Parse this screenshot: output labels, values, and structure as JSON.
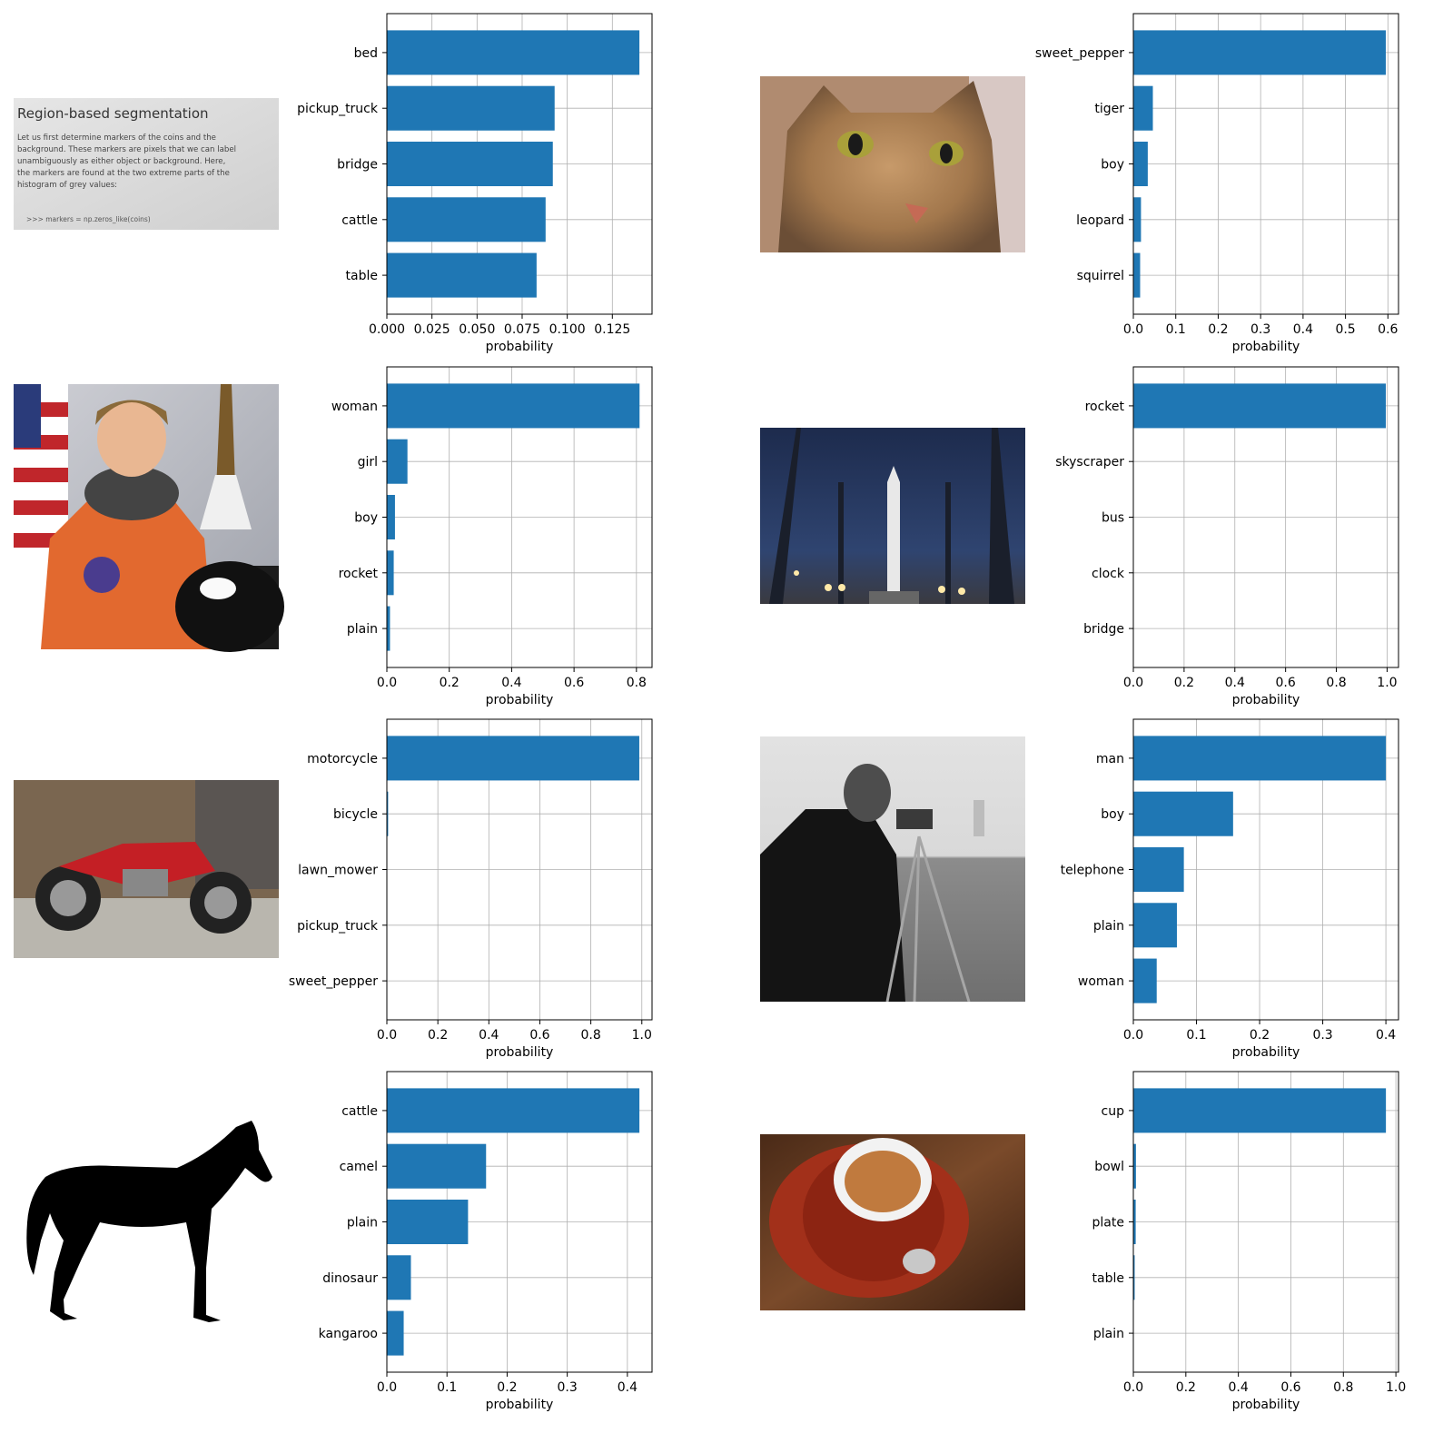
{
  "figure": {
    "panels": [
      {
        "photo": "text-page-photo",
        "photo_caption": "Region-based segmentation",
        "photo_lines": [
          "Let us first determine markers of the coins and the",
          "background. These markers are pixels that we can label",
          "unambiguously as either object or background. Here,",
          "the markers are found at the two extreme parts of the",
          "histogram of grey values:",
          ">>> markers = np.zeros_like(coins)"
        ]
      },
      {
        "photo": "cat-photo"
      },
      {
        "photo": "astronaut-photo"
      },
      {
        "photo": "rocket-launch-photo"
      },
      {
        "photo": "motorcycle-photo"
      },
      {
        "photo": "cameraman-photo"
      },
      {
        "photo": "horse-silhouette"
      },
      {
        "photo": "coffee-cup-photo"
      }
    ]
  },
  "colors": {
    "bar": "#1f77b4",
    "grid": "#b0b0b0",
    "axis": "#000000"
  },
  "chart_data": [
    {
      "type": "bar",
      "orientation": "horizontal",
      "categories": [
        "bed",
        "pickup_truck",
        "bridge",
        "cattle",
        "table"
      ],
      "values": [
        0.14,
        0.093,
        0.092,
        0.088,
        0.083
      ],
      "xlim": [
        0,
        0.147
      ],
      "xticks": [
        "0.000",
        "0.025",
        "0.050",
        "0.075",
        "0.100",
        "0.125"
      ],
      "xtick_values": [
        0,
        0.025,
        0.05,
        0.075,
        0.1,
        0.125
      ],
      "xlabel": "probability",
      "ylabel": "",
      "grid": true
    },
    {
      "type": "bar",
      "orientation": "horizontal",
      "categories": [
        "sweet_pepper",
        "tiger",
        "boy",
        "leopard",
        "squirrel"
      ],
      "values": [
        0.595,
        0.046,
        0.034,
        0.018,
        0.016
      ],
      "xlim": [
        0,
        0.625
      ],
      "xticks": [
        "0.0",
        "0.1",
        "0.2",
        "0.3",
        "0.4",
        "0.5",
        "0.6"
      ],
      "xtick_values": [
        0,
        0.1,
        0.2,
        0.3,
        0.4,
        0.5,
        0.6
      ],
      "xlabel": "probability",
      "ylabel": "",
      "grid": true
    },
    {
      "type": "bar",
      "orientation": "horizontal",
      "categories": [
        "woman",
        "girl",
        "boy",
        "rocket",
        "plain"
      ],
      "values": [
        0.81,
        0.066,
        0.026,
        0.022,
        0.01
      ],
      "xlim": [
        0,
        0.85
      ],
      "xticks": [
        "0.0",
        "0.2",
        "0.4",
        "0.6",
        "0.8"
      ],
      "xtick_values": [
        0,
        0.2,
        0.4,
        0.6,
        0.8
      ],
      "xlabel": "probability",
      "ylabel": "",
      "grid": true
    },
    {
      "type": "bar",
      "orientation": "horizontal",
      "categories": [
        "rocket",
        "skyscraper",
        "bus",
        "clock",
        "bridge"
      ],
      "values": [
        0.995,
        0.001,
        0.0005,
        0.0003,
        0.0002
      ],
      "xlim": [
        0,
        1.045
      ],
      "xticks": [
        "0.0",
        "0.2",
        "0.4",
        "0.6",
        "0.8",
        "1.0"
      ],
      "xtick_values": [
        0,
        0.2,
        0.4,
        0.6,
        0.8,
        1.0
      ],
      "xlabel": "probability",
      "ylabel": "",
      "grid": true
    },
    {
      "type": "bar",
      "orientation": "horizontal",
      "categories": [
        "motorcycle",
        "bicycle",
        "lawn_mower",
        "pickup_truck",
        "sweet_pepper"
      ],
      "values": [
        0.99,
        0.005,
        0.0008,
        0.0005,
        0.0003
      ],
      "xlim": [
        0,
        1.04
      ],
      "xticks": [
        "0.0",
        "0.2",
        "0.4",
        "0.6",
        "0.8",
        "1.0"
      ],
      "xtick_values": [
        0,
        0.2,
        0.4,
        0.6,
        0.8,
        1.0
      ],
      "xlabel": "probability",
      "ylabel": "",
      "grid": true
    },
    {
      "type": "bar",
      "orientation": "horizontal",
      "categories": [
        "man",
        "boy",
        "telephone",
        "plain",
        "woman"
      ],
      "values": [
        0.4,
        0.158,
        0.08,
        0.069,
        0.037
      ],
      "xlim": [
        0,
        0.42
      ],
      "xticks": [
        "0.0",
        "0.1",
        "0.2",
        "0.3",
        "0.4"
      ],
      "xtick_values": [
        0,
        0.1,
        0.2,
        0.3,
        0.4
      ],
      "xlabel": "probability",
      "ylabel": "",
      "grid": true
    },
    {
      "type": "bar",
      "orientation": "horizontal",
      "categories": [
        "cattle",
        "camel",
        "plain",
        "dinosaur",
        "kangaroo"
      ],
      "values": [
        0.42,
        0.165,
        0.135,
        0.04,
        0.028
      ],
      "xlim": [
        0,
        0.441
      ],
      "xticks": [
        "0.0",
        "0.1",
        "0.2",
        "0.3",
        "0.4"
      ],
      "xtick_values": [
        0,
        0.1,
        0.2,
        0.3,
        0.4
      ],
      "xlabel": "probability",
      "ylabel": "",
      "grid": true
    },
    {
      "type": "bar",
      "orientation": "horizontal",
      "categories": [
        "cup",
        "bowl",
        "plate",
        "table",
        "plain"
      ],
      "values": [
        0.962,
        0.01,
        0.009,
        0.005,
        0.001
      ],
      "xlim": [
        0,
        1.01
      ],
      "xticks": [
        "0.0",
        "0.2",
        "0.4",
        "0.6",
        "0.8",
        "1.0"
      ],
      "xtick_values": [
        0,
        0.2,
        0.4,
        0.6,
        0.8,
        1.0
      ],
      "xlabel": "probability",
      "ylabel": "",
      "grid": true
    }
  ]
}
